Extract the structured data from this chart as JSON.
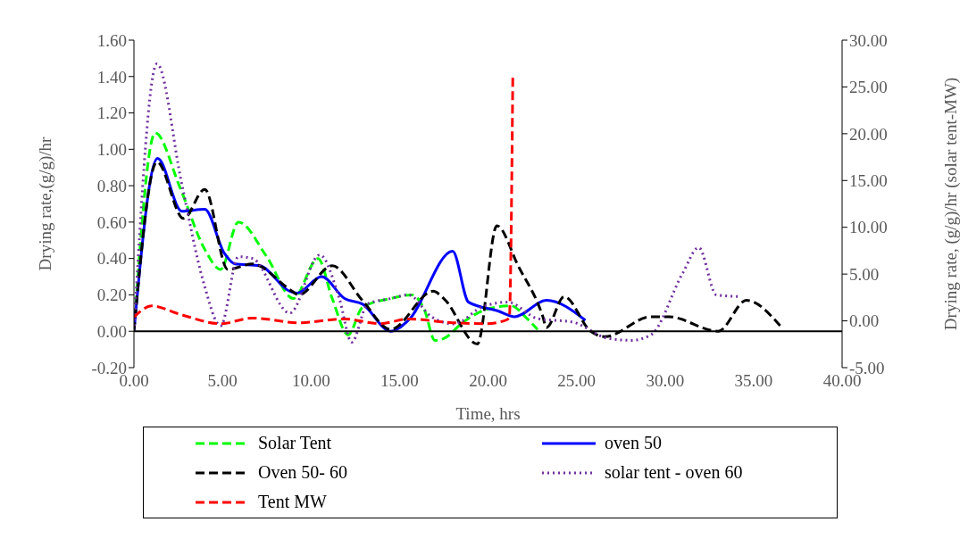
{
  "chart_data": {
    "type": "line",
    "xlabel": "Time, hrs",
    "ylabel": "Drying rate,(g/g)/hr",
    "y2label": "Drying rate, (g/g)/hr (solar tent-MW)",
    "xlim": [
      0,
      40
    ],
    "xticks": [
      {
        "value": 0,
        "label": "0.00"
      },
      {
        "value": 5,
        "label": "5.00"
      },
      {
        "value": 10,
        "label": "10.00"
      },
      {
        "value": 15,
        "label": "15.00"
      },
      {
        "value": 20,
        "label": "20.00"
      },
      {
        "value": 25,
        "label": "25.00"
      },
      {
        "value": 30,
        "label": "30.00"
      },
      {
        "value": 35,
        "label": "35.00"
      },
      {
        "value": 40,
        "label": "40.00"
      }
    ],
    "ylim": [
      -0.2,
      1.6
    ],
    "yticks": [
      {
        "value": -0.2,
        "label": "-0.20"
      },
      {
        "value": 0,
        "label": "0.00"
      },
      {
        "value": 0.2,
        "label": "0.20"
      },
      {
        "value": 0.4,
        "label": "0.40"
      },
      {
        "value": 0.6,
        "label": "0.60"
      },
      {
        "value": 0.8,
        "label": "0.80"
      },
      {
        "value": 1,
        "label": "1.00"
      },
      {
        "value": 1.2,
        "label": "1.20"
      },
      {
        "value": 1.4,
        "label": "1.40"
      },
      {
        "value": 1.6,
        "label": "1.60"
      }
    ],
    "y2lim": [
      -5,
      30
    ],
    "y2ticks": [
      {
        "value": -5,
        "label": "-5.00"
      },
      {
        "value": 0,
        "label": "0.00"
      },
      {
        "value": 5,
        "label": "5.00"
      },
      {
        "value": 10,
        "label": "10.00"
      },
      {
        "value": 15,
        "label": "15.00"
      },
      {
        "value": 20,
        "label": "20.00"
      },
      {
        "value": 25,
        "label": "25.00"
      },
      {
        "value": 30,
        "label": "30.00"
      }
    ],
    "grid": false,
    "legend": "bottom",
    "marker": "none",
    "series": [
      {
        "name": "Solar Tent",
        "color": "#00ff00",
        "line_style": "dashed",
        "x": [
          0,
          1.2,
          2.6,
          4.0,
          4.9,
          5.9,
          7.5,
          9.0,
          10.4,
          11.2,
          12.1,
          12.9,
          14.5,
          15.7,
          16.4,
          17.0,
          17.5,
          18.6,
          19.9,
          21.3,
          22.2,
          22.8
        ],
        "values": [
          0,
          1.09,
          0.79,
          0.45,
          0.34,
          0.6,
          0.41,
          0.18,
          0.4,
          0.18,
          -0.02,
          0.13,
          0.18,
          0.2,
          0.12,
          -0.05,
          -0.04,
          0.05,
          0.12,
          0.14,
          0.07,
          0.01
        ]
      },
      {
        "name": "oven 50",
        "color": "#0000ff",
        "line_style": "solid",
        "x": [
          0,
          1.34,
          2.7,
          4.0,
          5.1,
          5.7,
          7.1,
          8.8,
          9.2,
          10.6,
          11.9,
          12.9,
          14.5,
          15.5,
          18.0,
          18.9,
          20.6,
          21.5,
          23.3,
          25.5
        ],
        "values": [
          0,
          0.95,
          0.66,
          0.67,
          0.43,
          0.37,
          0.36,
          0.22,
          0.21,
          0.3,
          0.18,
          0.15,
          0,
          0.06,
          0.44,
          0.16,
          0.11,
          0.08,
          0.17,
          0.06
        ]
      },
      {
        "name": "Oven 50- 60",
        "color": "#000000",
        "line_style": "dashed",
        "x": [
          0,
          1.3,
          2.8,
          4.0,
          5.3,
          6.7,
          8.8,
          9.3,
          11.2,
          12.9,
          14.5,
          16.9,
          17.5,
          19.4,
          20.5,
          21.7,
          23.1,
          23.3,
          24.3,
          25.8,
          26.6,
          29.2,
          30.2,
          33.0,
          34.6,
          36.5
        ],
        "values": [
          0,
          0.93,
          0.62,
          0.78,
          0.34,
          0.37,
          0.23,
          0.2,
          0.36,
          0.17,
          0.01,
          0.22,
          0.18,
          -0.07,
          0.58,
          0.36,
          0.08,
          0.02,
          0.19,
          0,
          -0.03,
          0.08,
          0.08,
          0,
          0.17,
          0.03
        ]
      },
      {
        "name": "solar tent - oven 60",
        "color": "#7030a0",
        "line_style": "dotted",
        "x": [
          0,
          1.3,
          2.7,
          3.9,
          4.9,
          5.9,
          6.7,
          8.8,
          10.5,
          11.6,
          12.3,
          13.2,
          14.5,
          15.5,
          16.8,
          18.1,
          19.6,
          21.1,
          22.8,
          24.8,
          26.8,
          28.1,
          29.2,
          31.0,
          31.9,
          32.9,
          34.3
        ],
        "values": [
          0,
          1.47,
          0.81,
          0.28,
          0.03,
          0.41,
          0.4,
          0.1,
          0.42,
          0.18,
          -0.06,
          0.15,
          0.18,
          0.2,
          0.08,
          0.04,
          0.13,
          0.16,
          0.07,
          0.05,
          -0.04,
          -0.05,
          -0.02,
          0.32,
          0.46,
          0.2,
          0.19
        ]
      },
      {
        "name": "Tent MW",
        "color": "#ff0000",
        "line_style": "dashed",
        "axis": "y2",
        "x": [
          0,
          1,
          2.6,
          4.9,
          6.7,
          9.3,
          11.9,
          13.9,
          15.5,
          18.0,
          19.9,
          20.9,
          21.2,
          21.4
        ],
        "values": [
          0.4,
          1.6,
          0.7,
          -0.3,
          0.3,
          -0.2,
          0.2,
          -0.3,
          0.2,
          -0.2,
          -0.3,
          0,
          0.3,
          26
        ]
      }
    ]
  }
}
